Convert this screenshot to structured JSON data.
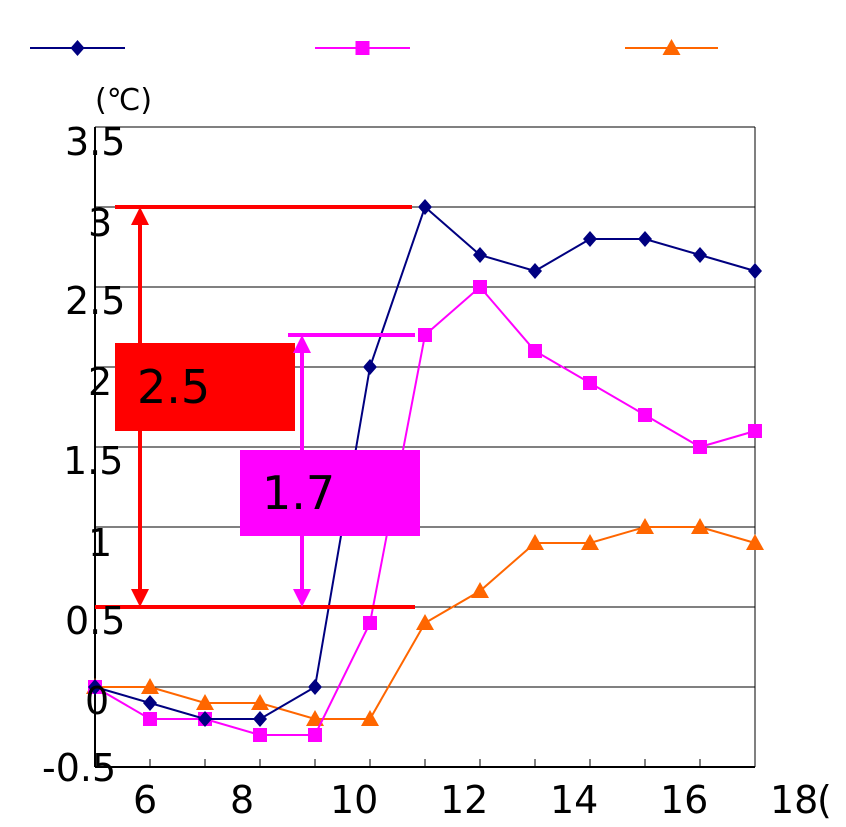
{
  "chart_data": {
    "type": "line",
    "y_unit_label": "(℃)",
    "x_unit_fragment": "(",
    "x_ticks": [
      "6",
      "8",
      "10",
      "12",
      "14",
      "16",
      "18"
    ],
    "y_ticks": [
      "-0.5",
      "0",
      "0.5",
      "1",
      "1.5",
      "2",
      "2.5",
      "3",
      "3.5"
    ],
    "xlim": [
      5,
      17
    ],
    "ylim": [
      -0.5,
      3.5
    ],
    "grid": "horizontal",
    "legend_position": "top",
    "x": [
      5,
      6,
      7,
      8,
      9,
      10,
      11,
      12,
      13,
      14,
      15,
      16,
      17
    ],
    "series": [
      {
        "color": "#000080",
        "marker": "diamond",
        "values": [
          0,
          -0.1,
          -0.2,
          -0.2,
          0.0,
          2.0,
          3.0,
          2.7,
          2.6,
          2.8,
          2.8,
          2.7,
          2.6
        ]
      },
      {
        "color": "#ff00ff",
        "marker": "square",
        "values": [
          0,
          -0.2,
          -0.2,
          -0.3,
          -0.3,
          0.4,
          2.2,
          2.5,
          2.1,
          1.9,
          1.7,
          1.5,
          1.6
        ]
      },
      {
        "color": "#ff6600",
        "marker": "triangle",
        "values": [
          0,
          0,
          -0.1,
          -0.1,
          -0.2,
          -0.2,
          0.4,
          0.6,
          0.9,
          0.9,
          1.0,
          1.0,
          0.9
        ]
      }
    ],
    "annotations": [
      {
        "label": "2.5",
        "color": "#ff0000",
        "from": 0.5,
        "to": 3.0
      },
      {
        "label": "1.7",
        "color": "#ff00ff",
        "from": 0.5,
        "to": 2.2
      }
    ]
  }
}
